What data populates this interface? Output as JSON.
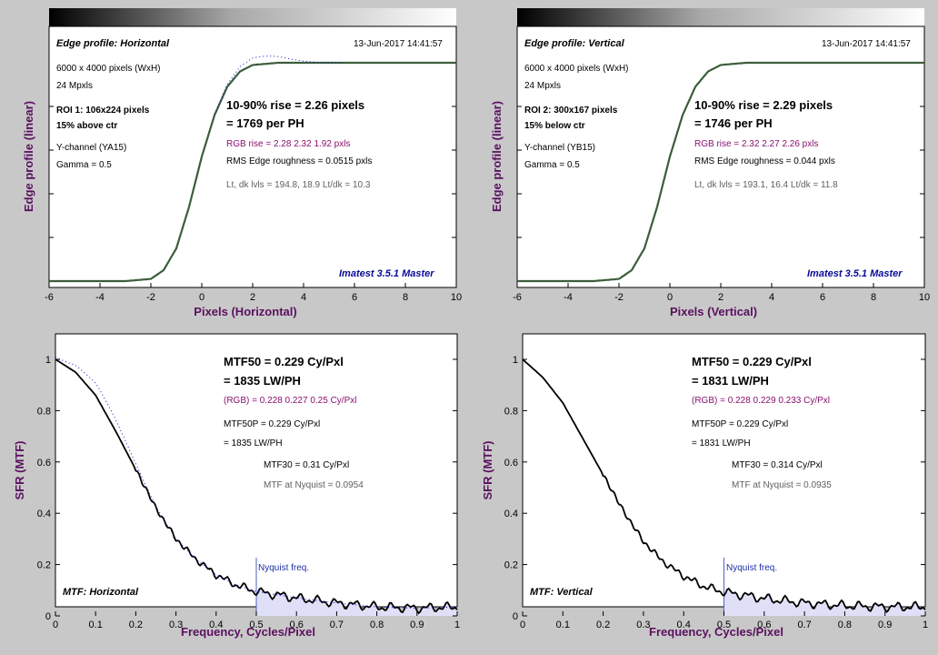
{
  "panels": {
    "edge_h": {
      "title": "Edge profile: Horizontal",
      "timestamp": "13-Jun-2017 14:41:57",
      "info": [
        "6000 x 4000 pixels (WxH)",
        "24 Mpxls"
      ],
      "roi": "ROI 1:  106x224 pixels",
      "roi_pos": "15% above ctr",
      "channel": "Y-channel  (YA15)",
      "gamma": "Gamma = 0.5",
      "rise": "10-90% rise = 2.26 pixels",
      "per_ph": "= 1769 per PH",
      "rgb_rise": "RGB rise = 2.28  2.32  1.92 pxls",
      "roughness": "RMS Edge roughness = 0.0515 pxls",
      "levels": "Lt, dk lvls = 194.8, 18.9   Lt/dk = 10.3",
      "brand": "Imatest 3.5.1 Master",
      "xlabel": "Pixels (Horizontal)",
      "ylabel": "Edge profile (linear)"
    },
    "edge_v": {
      "title": "Edge profile: Vertical",
      "timestamp": "13-Jun-2017 14:41:57",
      "info": [
        "6000 x 4000 pixels (WxH)",
        "24 Mpxls"
      ],
      "roi": "ROI 2:  300x167 pixels",
      "roi_pos": "15% below ctr",
      "channel": "Y-channel  (YB15)",
      "gamma": "Gamma = 0.5",
      "rise": "10-90% rise = 2.29 pixels",
      "per_ph": "= 1746 per PH",
      "rgb_rise": "RGB rise = 2.32  2.27  2.26 pxls",
      "roughness": "RMS Edge roughness = 0.044 pxls",
      "levels": "Lt, dk lvls = 193.1, 16.4   Lt/dk = 11.8",
      "brand": "Imatest 3.5.1 Master",
      "xlabel": "Pixels (Vertical)",
      "ylabel": "Edge profile (linear)"
    },
    "mtf_h": {
      "mtf50": "MTF50 = 0.229 Cy/Pxl",
      "lwph": "= 1835 LW/PH",
      "rgb": "(RGB) = 0.228  0.227  0.25 Cy/Pxl",
      "mtf50p": "MTF50P = 0.229 Cy/Pxl",
      "mtf50p_lw": "= 1835 LW/PH",
      "mtf30": "MTF30 = 0.31 Cy/Pxl",
      "nyq_mtf": "MTF at Nyquist = 0.0954",
      "nyq_label": "Nyquist freq.",
      "label": "MTF: Horizontal",
      "xlabel": "Frequency, Cycles/Pixel",
      "ylabel": "SFR (MTF)"
    },
    "mtf_v": {
      "mtf50": "MTF50 = 0.229 Cy/Pxl",
      "lwph": "= 1831 LW/PH",
      "rgb": "(RGB) = 0.228  0.229  0.233 Cy/Pxl",
      "mtf50p": "MTF50P = 0.229 Cy/Pxl",
      "mtf50p_lw": "= 1831 LW/PH",
      "mtf30": "MTF30 = 0.314 Cy/Pxl",
      "nyq_mtf": "MTF at Nyquist = 0.0935",
      "nyq_label": "Nyquist freq.",
      "label": "MTF: Vertical",
      "xlabel": "Frequency, Cycles/Pixel",
      "ylabel": "SFR (MTF)"
    }
  },
  "colors": {
    "bg": "#c8c8c8",
    "curve": "#000000",
    "overshoot": "#1010d0",
    "nyquist_fill": "#dfe0f7",
    "nyquist_line": "#5060c0"
  },
  "chart_data": [
    {
      "type": "line",
      "title": "Edge profile: Horizontal",
      "xlabel": "Pixels (Horizontal)",
      "ylabel": "Edge profile (linear)",
      "xlim": [
        -6,
        10
      ],
      "xticks": [
        "-6",
        "-4",
        "-2",
        "0",
        "2",
        "4",
        "6",
        "8",
        "10"
      ],
      "series": [
        {
          "x": [
            -6,
            -3,
            -2,
            -1.5,
            -1,
            -0.5,
            0,
            0.5,
            1,
            1.5,
            2,
            3,
            4,
            6,
            8,
            10
          ],
          "values": [
            0.0,
            0.0,
            0.01,
            0.05,
            0.15,
            0.34,
            0.57,
            0.76,
            0.89,
            0.96,
            0.99,
            1.0,
            1.0,
            1.0,
            1.0,
            1.0
          ]
        }
      ]
    },
    {
      "type": "line",
      "title": "Edge profile: Vertical",
      "xlabel": "Pixels (Vertical)",
      "ylabel": "Edge profile (linear)",
      "xlim": [
        -6,
        10
      ],
      "xticks": [
        "-6",
        "-4",
        "-2",
        "0",
        "2",
        "4",
        "6",
        "8",
        "10"
      ],
      "series": [
        {
          "x": [
            -6,
            -3,
            -2,
            -1.5,
            -1,
            -0.5,
            0,
            0.5,
            1,
            1.5,
            2,
            3,
            4,
            6,
            8,
            10
          ],
          "values": [
            0.0,
            0.0,
            0.01,
            0.05,
            0.15,
            0.34,
            0.57,
            0.76,
            0.89,
            0.96,
            0.99,
            1.0,
            1.0,
            1.0,
            1.0,
            1.0
          ]
        }
      ]
    },
    {
      "type": "line",
      "title": "MTF: Horizontal",
      "xlabel": "Frequency, Cycles/Pixel",
      "ylabel": "SFR (MTF)",
      "xlim": [
        0,
        1
      ],
      "ylim": [
        0,
        1.1
      ],
      "xticks": [
        "0",
        "0.1",
        "0.2",
        "0.3",
        "0.4",
        "0.5",
        "0.6",
        "0.7",
        "0.8",
        "0.9",
        "1"
      ],
      "yticks": [
        "0",
        "0.2",
        "0.4",
        "0.6",
        "0.8",
        "1"
      ],
      "series": [
        {
          "x": [
            0,
            0.05,
            0.1,
            0.15,
            0.2,
            0.25,
            0.3,
            0.35,
            0.4,
            0.45,
            0.5,
            0.6,
            0.7,
            0.8,
            0.9,
            1.0
          ],
          "values": [
            1.0,
            0.95,
            0.86,
            0.72,
            0.57,
            0.42,
            0.3,
            0.22,
            0.16,
            0.12,
            0.095,
            0.07,
            0.05,
            0.035,
            0.03,
            0.035
          ]
        }
      ],
      "nyquist": 0.5
    },
    {
      "type": "line",
      "title": "MTF: Vertical",
      "xlabel": "Frequency, Cycles/Pixel",
      "ylabel": "SFR (MTF)",
      "xlim": [
        0,
        1
      ],
      "ylim": [
        0,
        1.1
      ],
      "xticks": [
        "0",
        "0.1",
        "0.2",
        "0.3",
        "0.4",
        "0.5",
        "0.6",
        "0.7",
        "0.8",
        "0.9",
        "1"
      ],
      "yticks": [
        "0",
        "0.2",
        "0.4",
        "0.6",
        "0.8",
        "1"
      ],
      "series": [
        {
          "x": [
            0,
            0.05,
            0.1,
            0.15,
            0.2,
            0.25,
            0.3,
            0.35,
            0.4,
            0.45,
            0.5,
            0.6,
            0.7,
            0.8,
            0.9,
            1.0
          ],
          "values": [
            1.0,
            0.93,
            0.83,
            0.69,
            0.55,
            0.41,
            0.29,
            0.21,
            0.155,
            0.115,
            0.093,
            0.068,
            0.05,
            0.04,
            0.035,
            0.035
          ]
        }
      ],
      "nyquist": 0.5
    }
  ]
}
